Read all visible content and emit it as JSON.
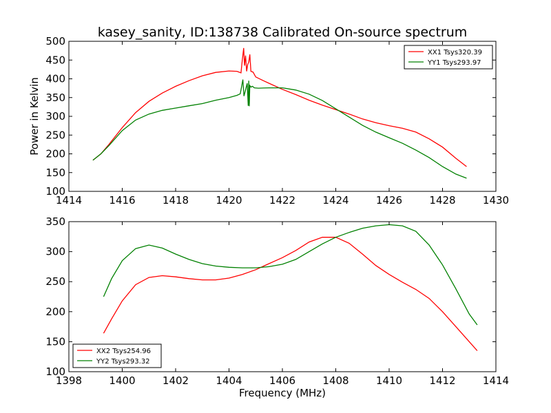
{
  "figure": {
    "title": "kasey_sanity, ID:138738 Calibrated On-source spectrum"
  },
  "chart_data": [
    {
      "type": "line",
      "title": "kasey_sanity, ID:138738 Calibrated On-source spectrum",
      "xlabel": "",
      "ylabel": "Power in Kelvin",
      "xlim": [
        1414,
        1430
      ],
      "ylim": [
        100,
        500
      ],
      "xticks": [
        1414,
        1416,
        1418,
        1420,
        1422,
        1424,
        1426,
        1428,
        1430
      ],
      "yticks": [
        100,
        150,
        200,
        250,
        300,
        350,
        400,
        450,
        500
      ],
      "grid": false,
      "legend_position": "top-right",
      "series": [
        {
          "name": "XX1 Tsys320.39",
          "color": "#ff0000",
          "x": [
            1414.9,
            1415.2,
            1415.5,
            1416,
            1416.5,
            1417,
            1417.5,
            1418,
            1418.5,
            1419,
            1419.5,
            1420,
            1420.3,
            1420.45,
            1420.5,
            1420.55,
            1420.58,
            1420.62,
            1420.66,
            1420.7,
            1420.74,
            1420.78,
            1420.82,
            1420.9,
            1421,
            1421.2,
            1421.5,
            1422,
            1422.5,
            1423,
            1423.5,
            1424,
            1424.5,
            1425,
            1425.5,
            1426,
            1426.5,
            1427,
            1427.5,
            1428,
            1428.5,
            1428.9
          ],
          "y": [
            183,
            200,
            225,
            270,
            310,
            340,
            362,
            380,
            395,
            408,
            417,
            421,
            420,
            416,
            452,
            482,
            435,
            462,
            420,
            438,
            445,
            465,
            420,
            418,
            405,
            398,
            388,
            372,
            358,
            343,
            330,
            318,
            306,
            293,
            283,
            275,
            268,
            258,
            240,
            218,
            188,
            166
          ]
        },
        {
          "name": "YY1 Tsys293.97",
          "color": "#008000",
          "x": [
            1414.9,
            1415.2,
            1415.5,
            1416,
            1416.5,
            1417,
            1417.5,
            1418,
            1418.5,
            1419,
            1419.5,
            1420,
            1420.3,
            1420.42,
            1420.48,
            1420.52,
            1420.56,
            1420.62,
            1420.68,
            1420.72,
            1420.74,
            1420.76,
            1420.78,
            1420.82,
            1420.88,
            1420.95,
            1421.1,
            1421.5,
            1422,
            1422.5,
            1423,
            1423.5,
            1424,
            1424.5,
            1425,
            1425.5,
            1426,
            1426.5,
            1427,
            1427.5,
            1428,
            1428.5,
            1428.9
          ],
          "y": [
            183,
            200,
            222,
            262,
            290,
            306,
            316,
            322,
            328,
            334,
            343,
            350,
            356,
            360,
            382,
            398,
            354,
            370,
            388,
            328,
            395,
            327,
            382,
            378,
            380,
            376,
            375,
            376,
            376,
            370,
            359,
            342,
            320,
            298,
            276,
            258,
            243,
            228,
            210,
            190,
            166,
            146,
            135
          ]
        }
      ]
    },
    {
      "type": "line",
      "title": "",
      "xlabel": "Frequency (MHz)",
      "ylabel": "",
      "xlim": [
        1398,
        1414
      ],
      "ylim": [
        100,
        350
      ],
      "xticks": [
        1398,
        1400,
        1402,
        1404,
        1406,
        1408,
        1410,
        1412,
        1414
      ],
      "yticks": [
        100,
        150,
        200,
        250,
        300,
        350
      ],
      "grid": false,
      "legend_position": "bottom-left",
      "series": [
        {
          "name": "XX2 Tsys254.96",
          "color": "#ff0000",
          "x": [
            1399.3,
            1399.6,
            1400,
            1400.5,
            1401,
            1401.5,
            1402,
            1402.5,
            1403,
            1403.5,
            1404,
            1404.5,
            1405,
            1405.5,
            1406,
            1406.5,
            1407,
            1407.5,
            1408,
            1408.5,
            1409,
            1409.5,
            1410,
            1410.5,
            1411,
            1411.5,
            1412,
            1412.5,
            1413,
            1413.3
          ],
          "y": [
            164,
            188,
            218,
            245,
            257,
            260,
            258,
            255,
            253,
            253,
            256,
            262,
            270,
            280,
            290,
            302,
            316,
            324,
            324,
            314,
            296,
            277,
            262,
            249,
            237,
            222,
            200,
            175,
            150,
            135
          ]
        },
        {
          "name": "YY2 Tsys293.32",
          "color": "#008000",
          "x": [
            1399.3,
            1399.6,
            1400,
            1400.5,
            1401,
            1401.5,
            1402,
            1402.5,
            1403,
            1403.5,
            1404,
            1404.5,
            1405,
            1405.5,
            1406,
            1406.5,
            1407,
            1407.5,
            1408,
            1408.5,
            1409,
            1409.5,
            1410,
            1410.5,
            1411,
            1411.5,
            1412,
            1412.5,
            1413,
            1413.3
          ],
          "y": [
            225,
            255,
            285,
            305,
            311,
            306,
            296,
            287,
            280,
            276,
            274,
            273,
            273,
            275,
            279,
            287,
            300,
            313,
            324,
            332,
            339,
            343,
            345,
            343,
            334,
            311,
            278,
            238,
            196,
            178
          ]
        }
      ]
    }
  ]
}
